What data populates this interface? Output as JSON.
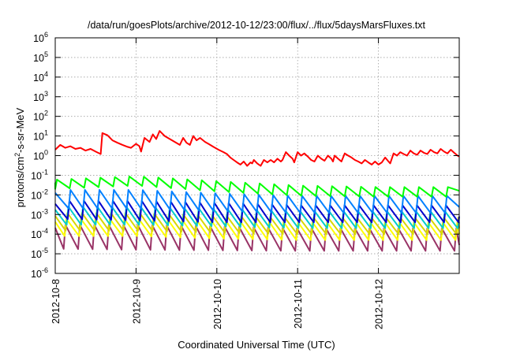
{
  "chart_data": {
    "type": "line",
    "title": "/data/run/goesPlots/archive/2012-10-12/23:00/flux/../flux/5daysMarsFluxes.txt",
    "xlabel": "Coordinated Universal Time (UTC)",
    "ylabel": {
      "main": "protons/cm",
      "sup": "2",
      "rest": "-s-sr-MeV"
    },
    "x_scale": "time",
    "y_scale": "log",
    "xlim": [
      "2012-10-08",
      "2012-10-13"
    ],
    "ylim": [
      1e-06,
      1000000.0
    ],
    "grid": true,
    "legend": "none",
    "x_ticks": [
      "2012-10-8",
      "2012-10-9",
      "2012-10-10",
      "2012-10-11",
      "2012-10-12"
    ],
    "y_ticks": [
      {
        "base": "10",
        "exp": "-6"
      },
      {
        "base": "10",
        "exp": "-5"
      },
      {
        "base": "10",
        "exp": "-4"
      },
      {
        "base": "10",
        "exp": "-3"
      },
      {
        "base": "10",
        "exp": "-2"
      },
      {
        "base": "10",
        "exp": "-1"
      },
      {
        "base": "10",
        "exp": "0"
      },
      {
        "base": "10",
        "exp": "1"
      },
      {
        "base": "10",
        "exp": "2"
      },
      {
        "base": "10",
        "exp": "3"
      },
      {
        "base": "10",
        "exp": "4"
      },
      {
        "base": "10",
        "exp": "5"
      },
      {
        "base": "10",
        "exp": "6"
      }
    ],
    "series": [
      {
        "color": "#ff0000",
        "points": [
          [
            "2012-10-08 00:00",
            2.0
          ],
          [
            "2012-10-08 01:30",
            3.5
          ],
          [
            "2012-10-08 03:00",
            2.5
          ],
          [
            "2012-10-08 04:30",
            3.0
          ],
          [
            "2012-10-08 06:00",
            2.2
          ],
          [
            "2012-10-08 07:30",
            2.5
          ],
          [
            "2012-10-08 09:00",
            1.8
          ],
          [
            "2012-10-08 10:30",
            2.2
          ],
          [
            "2012-10-08 12:00",
            1.6
          ],
          [
            "2012-10-08 13:30",
            1.2
          ],
          [
            "2012-10-08 14:00",
            14.0
          ],
          [
            "2012-10-08 15:30",
            11.0
          ],
          [
            "2012-10-08 17:00",
            6.0
          ],
          [
            "2012-10-08 18:30",
            4.5
          ],
          [
            "2012-10-08 20:00",
            3.5
          ],
          [
            "2012-10-08 21:30",
            2.8
          ],
          [
            "2012-10-08 22:30",
            2.5
          ],
          [
            "2012-10-09 00:00",
            4.0
          ],
          [
            "2012-10-09 01:00",
            3.0
          ],
          [
            "2012-10-09 01:30",
            1.6
          ],
          [
            "2012-10-09 02:30",
            8.0
          ],
          [
            "2012-10-09 04:00",
            5.0
          ],
          [
            "2012-10-09 05:00",
            12.0
          ],
          [
            "2012-10-09 06:00",
            7.0
          ],
          [
            "2012-10-09 07:00",
            18.0
          ],
          [
            "2012-10-09 08:30",
            10.0
          ],
          [
            "2012-10-09 10:00",
            7.0
          ],
          [
            "2012-10-09 11:30",
            5.0
          ],
          [
            "2012-10-09 13:00",
            3.5
          ],
          [
            "2012-10-09 14:00",
            8.0
          ],
          [
            "2012-10-09 15:00",
            4.5
          ],
          [
            "2012-10-09 16:00",
            3.5
          ],
          [
            "2012-10-09 17:00",
            10.0
          ],
          [
            "2012-10-09 18:00",
            6.0
          ],
          [
            "2012-10-09 19:00",
            8.0
          ],
          [
            "2012-10-09 20:30",
            5.0
          ],
          [
            "2012-10-09 21:30",
            4.0
          ],
          [
            "2012-10-09 23:00",
            2.8
          ],
          [
            "2012-10-10 00:30",
            2.0
          ],
          [
            "2012-10-10 02:00",
            1.5
          ],
          [
            "2012-10-10 03:00",
            1.2
          ],
          [
            "2012-10-10 04:00",
            0.8
          ],
          [
            "2012-10-10 05:00",
            0.6
          ],
          [
            "2012-10-10 06:00",
            0.45
          ],
          [
            "2012-10-10 07:00",
            0.35
          ],
          [
            "2012-10-10 08:00",
            0.5
          ],
          [
            "2012-10-10 09:00",
            0.3
          ],
          [
            "2012-10-10 10:00",
            0.45
          ],
          [
            "2012-10-10 10:30",
            0.4
          ],
          [
            "2012-10-10 11:00",
            0.6
          ],
          [
            "2012-10-10 12:00",
            0.4
          ],
          [
            "2012-10-10 13:00",
            0.3
          ],
          [
            "2012-10-10 14:00",
            0.6
          ],
          [
            "2012-10-10 15:00",
            0.45
          ],
          [
            "2012-10-10 16:00",
            0.6
          ],
          [
            "2012-10-10 17:00",
            0.45
          ],
          [
            "2012-10-10 18:00",
            0.7
          ],
          [
            "2012-10-10 19:00",
            0.5
          ],
          [
            "2012-10-10 19:30",
            0.6
          ],
          [
            "2012-10-10 20:30",
            1.5
          ],
          [
            "2012-10-10 21:30",
            1.0
          ],
          [
            "2012-10-10 22:30",
            0.7
          ],
          [
            "2012-10-10 23:00",
            0.45
          ],
          [
            "2012-10-11 00:00",
            1.5
          ],
          [
            "2012-10-11 01:00",
            1.0
          ],
          [
            "2012-10-11 02:00",
            1.3
          ],
          [
            "2012-10-11 03:00",
            0.9
          ],
          [
            "2012-10-11 04:00",
            0.6
          ],
          [
            "2012-10-11 05:00",
            0.5
          ],
          [
            "2012-10-11 06:00",
            1.0
          ],
          [
            "2012-10-11 07:00",
            0.7
          ],
          [
            "2012-10-11 08:00",
            0.55
          ],
          [
            "2012-10-11 09:00",
            1.0
          ],
          [
            "2012-10-11 10:00",
            0.7
          ],
          [
            "2012-10-11 10:30",
            0.5
          ],
          [
            "2012-10-11 11:00",
            1.0
          ],
          [
            "2012-10-11 12:00",
            0.7
          ],
          [
            "2012-10-11 13:00",
            0.5
          ],
          [
            "2012-10-11 14:00",
            1.3
          ],
          [
            "2012-10-11 15:00",
            1.0
          ],
          [
            "2012-10-11 16:00",
            0.8
          ],
          [
            "2012-10-11 17:00",
            0.6
          ],
          [
            "2012-10-11 18:00",
            0.5
          ],
          [
            "2012-10-11 19:00",
            0.4
          ],
          [
            "2012-10-11 20:00",
            0.6
          ],
          [
            "2012-10-11 21:00",
            0.45
          ],
          [
            "2012-10-11 22:00",
            0.35
          ],
          [
            "2012-10-11 23:00",
            0.5
          ],
          [
            "2012-10-12 00:00",
            0.35
          ],
          [
            "2012-10-12 01:00",
            0.45
          ],
          [
            "2012-10-12 02:00",
            0.8
          ],
          [
            "2012-10-12 03:00",
            0.5
          ],
          [
            "2012-10-12 03:30",
            0.4
          ],
          [
            "2012-10-12 04:30",
            1.3
          ],
          [
            "2012-10-12 05:30",
            1.0
          ],
          [
            "2012-10-12 06:30",
            1.5
          ],
          [
            "2012-10-12 07:30",
            1.2
          ],
          [
            "2012-10-12 08:30",
            1.0
          ],
          [
            "2012-10-12 09:30",
            1.8
          ],
          [
            "2012-10-12 10:30",
            1.3
          ],
          [
            "2012-10-12 11:30",
            1.1
          ],
          [
            "2012-10-12 12:30",
            1.8
          ],
          [
            "2012-10-12 13:30",
            1.4
          ],
          [
            "2012-10-12 14:30",
            1.2
          ],
          [
            "2012-10-12 15:30",
            2.0
          ],
          [
            "2012-10-12 16:30",
            1.5
          ],
          [
            "2012-10-12 17:30",
            1.3
          ],
          [
            "2012-10-12 18:30",
            2.2
          ],
          [
            "2012-10-12 19:30",
            1.6
          ],
          [
            "2012-10-12 20:30",
            1.3
          ],
          [
            "2012-10-12 21:30",
            2.0
          ],
          [
            "2012-10-12 22:30",
            1.4
          ],
          [
            "2012-10-12 23:30",
            1.0
          ],
          [
            "2012-10-13 00:00",
            0.9
          ]
        ]
      },
      {
        "color": "#00ff00",
        "sawtooth": {
          "high": [
            0.06,
            0.09,
            0.05,
            0.03,
            0.025,
            0.025
          ],
          "low": [
            0.02,
            0.03,
            0.015,
            0.009,
            0.008,
            0.008
          ],
          "cycle_hours": 4.3,
          "offset_hours": 0.0
        }
      },
      {
        "color": "#0080ff",
        "sawtooth": {
          "high": [
            0.018,
            0.018,
            0.012,
            0.009,
            0.009,
            0.009
          ],
          "low": [
            0.002,
            0.002,
            0.0015,
            0.0012,
            0.0012,
            0.0012
          ],
          "cycle_hours": 4.3,
          "offset_hours": 0.3
        }
      },
      {
        "color": "#0000cc",
        "sawtooth": {
          "high": [
            0.005,
            0.005,
            0.004,
            0.003,
            0.003,
            0.003
          ],
          "low": [
            0.0006,
            0.0005,
            0.0004,
            0.0004,
            0.0004,
            0.0004
          ],
          "cycle_hours": 4.3,
          "offset_hours": 0.6
        }
      },
      {
        "color": "#00cccc",
        "sawtooth": {
          "high": [
            0.0025,
            0.0025,
            0.002,
            0.0015,
            0.0015,
            0.0015
          ],
          "low": [
            0.0003,
            0.0003,
            0.00025,
            0.0002,
            0.0002,
            0.0002
          ],
          "cycle_hours": 4.3,
          "offset_hours": 0.9
        }
      },
      {
        "color": "#d8d800",
        "sawtooth": {
          "high": [
            0.0012,
            0.0012,
            0.0009,
            0.0007,
            0.0007,
            0.0007
          ],
          "low": [
            0.00015,
            0.00015,
            0.00012,
            0.0001,
            0.0001,
            0.0001
          ],
          "cycle_hours": 4.3,
          "offset_hours": 1.2
        }
      },
      {
        "color": "#ffff00",
        "sawtooth": {
          "high": [
            0.0006,
            0.0006,
            0.0005,
            0.0004,
            0.0004,
            0.0004
          ],
          "low": [
            8e-05,
            8e-05,
            6e-05,
            5e-05,
            5e-05,
            5e-05
          ],
          "cycle_hours": 4.3,
          "offset_hours": 1.5
        }
      },
      {
        "color": "#993366",
        "sawtooth": {
          "high": [
            0.0003,
            0.0003,
            0.00025,
            0.0002,
            0.0002,
            0.0002
          ],
          "low": [
            1.8e-05,
            1.6e-05,
            1.5e-05,
            1.4e-05,
            1.4e-05,
            1.4e-05
          ],
          "cycle_hours": 4.3,
          "offset_hours": 1.8
        }
      }
    ]
  }
}
